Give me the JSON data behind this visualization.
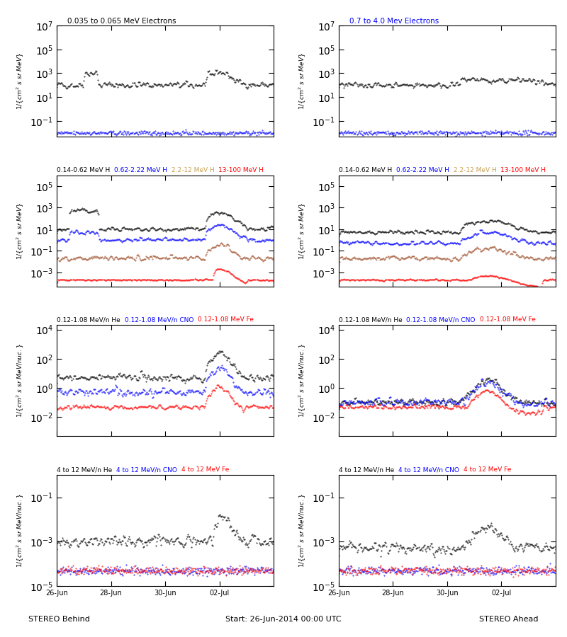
{
  "title_top": "0.035 to 0.065 MeV Electrons",
  "title_top_right": "0.7 to 4.0 Mev Electrons",
  "title_row2": "0.14-0.62 MeV H",
  "title_row2_b": "0.62-2.22 MeV H",
  "title_row2_c": "2.2-12 MeV H",
  "title_row2_d": "13-100 MeV H",
  "title_row3": "0.12-1.08 MeV/n He",
  "title_row3_b": "0.12-1.08 MeV/n CNO",
  "title_row3_c": "0.12-1.08 MeV Fe",
  "title_row4": "4 to 12 MeV/n He",
  "title_row4_b": "4 to 12 MeV/n CNO",
  "title_row4_c": "4 to 12 MeV Fe",
  "xlabel_left": "STEREO Behind",
  "xlabel_right": "STEREO Ahead",
  "xlabel_center": "Start: 26-Jun-2014 00:00 UTC",
  "xtick_labels": [
    "26-Jun",
    "28-Jun",
    "30-Jun",
    "02-Jul"
  ],
  "ylabel_electrons": "1/{cm² s sr MeV}",
  "ylabel_heavy": "1/{cm² s sr MeV/nuc.}",
  "background_color": "#ffffff",
  "colors": {
    "black": "#000000",
    "blue": "#0000ff",
    "brown": "#a0522d",
    "red": "#ff0000",
    "dark_blue": "#00008b"
  },
  "n_days": 8,
  "seed": 42
}
